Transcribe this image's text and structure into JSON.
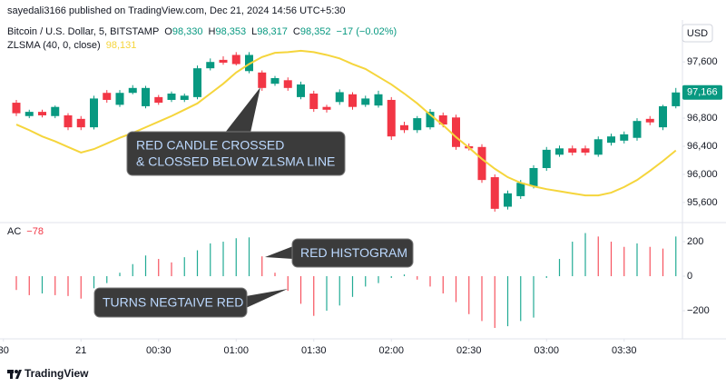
{
  "header": {
    "publisher": "sayedali3166 published on TradingView.com, Dec 21, 2024 14:56 UTC+5:30",
    "currency": "USD",
    "logo": "TradingView"
  },
  "chart_data": [
    {
      "type": "candlestick",
      "title": "Bitcoin / U.S. Dollar, 5, BITSTAMP",
      "legend": [
        {
          "key": "O",
          "value": "98,330"
        },
        {
          "key": "H",
          "value": "98,353"
        },
        {
          "key": "L",
          "value": "98,317"
        },
        {
          "key": "C",
          "value": "98,352"
        }
      ],
      "change": "−17 (−0.02%)",
      "up_color": "#089981",
      "down_color": "#f23645",
      "x": [
        "23:35",
        "23:40",
        "23:45",
        "23:50",
        "23:55",
        "00:00",
        "00:05",
        "00:10",
        "00:15",
        "00:20",
        "00:25",
        "00:30",
        "00:35",
        "00:40",
        "00:45",
        "00:50",
        "00:55",
        "01:00",
        "01:05",
        "01:10",
        "01:15",
        "01:20",
        "01:25",
        "01:30",
        "01:35",
        "01:40",
        "01:45",
        "01:50",
        "01:55",
        "02:00",
        "02:05",
        "02:10",
        "02:15",
        "02:20",
        "02:25",
        "02:30",
        "02:35",
        "02:40",
        "02:45",
        "02:50",
        "02:55",
        "03:00",
        "03:05",
        "03:10",
        "03:15",
        "03:20",
        "03:25",
        "03:30",
        "03:35",
        "03:40",
        "03:45",
        "03:50"
      ],
      "open": [
        97020,
        96830,
        96890,
        96830,
        96840,
        96790,
        96670,
        97160,
        96990,
        97160,
        96970,
        97100,
        97060,
        97060,
        97100,
        97510,
        97630,
        97700,
        97470,
        97450,
        97290,
        97340,
        97100,
        97150,
        96960,
        97030,
        97140,
        96990,
        96980,
        97060,
        96700,
        96630,
        96670,
        96840,
        96810,
        96400,
        96390,
        95960,
        95540,
        95690,
        95830,
        96090,
        96280,
        96370,
        96370,
        96280,
        96450,
        96480,
        96520,
        96790,
        96670,
        96970
      ],
      "high": [
        97060,
        96920,
        96920,
        96980,
        96870,
        96830,
        97120,
        97200,
        97200,
        97270,
        97260,
        97130,
        97180,
        97150,
        97550,
        97650,
        97680,
        97740,
        97740,
        97480,
        97400,
        97380,
        97320,
        97190,
        96990,
        97210,
        97170,
        97120,
        97190,
        97100,
        96750,
        96830,
        96930,
        96880,
        96850,
        96440,
        96430,
        96000,
        95770,
        95920,
        96130,
        96390,
        96410,
        96410,
        96410,
        96540,
        96580,
        96610,
        96800,
        96830,
        96990,
        97230
      ],
      "low": [
        96830,
        96800,
        96810,
        96800,
        96630,
        96630,
        96640,
        97020,
        96960,
        97140,
        96940,
        96990,
        97030,
        97030,
        97070,
        97480,
        97560,
        97550,
        97440,
        97190,
        97260,
        97190,
        97070,
        96890,
        96880,
        96990,
        96920,
        96960,
        96950,
        96490,
        96590,
        96590,
        96640,
        96670,
        96350,
        96340,
        95880,
        95470,
        95500,
        95650,
        95800,
        96050,
        96250,
        96270,
        96270,
        96250,
        96410,
        96440,
        96480,
        96700,
        96630,
        96940
      ],
      "close": [
        96870,
        96890,
        96840,
        96960,
        96670,
        96670,
        97080,
        97060,
        97160,
        97230,
        97230,
        97020,
        97150,
        97120,
        97510,
        97600,
        97590,
        97570,
        97700,
        97230,
        97370,
        97230,
        97280,
        96930,
        96920,
        97170,
        96960,
        97080,
        97140,
        96540,
        96630,
        96800,
        96890,
        96710,
        96390,
        96370,
        95920,
        95510,
        95730,
        95880,
        96090,
        96350,
        96370,
        96310,
        96310,
        96500,
        96540,
        96570,
        96760,
        96740,
        96970,
        97166
      ],
      "overlay": {
        "name": "ZLSMA (40, 0, close)",
        "value_label": "98,131",
        "color": "#f5d53c",
        "values": [
          96710,
          96630,
          96540,
          96470,
          96390,
          96310,
          96360,
          96440,
          96520,
          96590,
          96670,
          96750,
          96830,
          96920,
          97010,
          97150,
          97290,
          97450,
          97570,
          97670,
          97730,
          97740,
          97760,
          97740,
          97700,
          97650,
          97570,
          97500,
          97390,
          97280,
          97150,
          97010,
          96850,
          96700,
          96530,
          96380,
          96220,
          96080,
          95960,
          95880,
          95830,
          95790,
          95760,
          95730,
          95700,
          95700,
          95740,
          95820,
          95920,
          96050,
          96190,
          96340
        ]
      },
      "last_price": {
        "value": 97166,
        "label": "97,166"
      },
      "ylim": [
        95340,
        97900
      ],
      "yticks": [
        {
          "value": 97600,
          "label": "97,600"
        },
        {
          "value": 96800,
          "label": "96,800"
        },
        {
          "value": 96400,
          "label": "96,400"
        },
        {
          "value": 96000,
          "label": "96,000"
        },
        {
          "value": 95600,
          "label": "95,600"
        }
      ],
      "annotations": [
        {
          "lines": [
            "RED CANDLE CROSSED",
            "& CLOSSED BELOW ZLSMA LINE"
          ]
        }
      ]
    },
    {
      "type": "bar",
      "title": "AC",
      "value_label": "−78",
      "value_color": "#f23645",
      "x": [
        "23:35",
        "23:40",
        "23:45",
        "23:50",
        "23:55",
        "00:00",
        "00:05",
        "00:10",
        "00:15",
        "00:20",
        "00:25",
        "00:30",
        "00:35",
        "00:40",
        "00:45",
        "00:50",
        "00:55",
        "01:00",
        "01:05",
        "01:10",
        "01:15",
        "01:20",
        "01:25",
        "01:30",
        "01:35",
        "01:40",
        "01:45",
        "01:50",
        "01:55",
        "02:00",
        "02:05",
        "02:10",
        "02:15",
        "02:20",
        "02:25",
        "02:30",
        "02:35",
        "02:40",
        "02:45",
        "02:50",
        "02:55",
        "03:00",
        "03:05",
        "03:10",
        "03:15",
        "03:20",
        "03:25",
        "03:30",
        "03:35",
        "03:40",
        "03:45",
        "03:50"
      ],
      "values": [
        -80,
        -110,
        -100,
        -110,
        -115,
        -130,
        -70,
        -40,
        20,
        70,
        120,
        100,
        80,
        110,
        150,
        190,
        200,
        220,
        225,
        115,
        20,
        -85,
        -160,
        -230,
        -200,
        -170,
        -120,
        -60,
        -40,
        -10,
        10,
        -20,
        -60,
        -100,
        -150,
        -220,
        -260,
        -300,
        -290,
        -260,
        -240,
        -10,
        100,
        200,
        250,
        230,
        200,
        170,
        190,
        170,
        160,
        230
      ],
      "colors": [
        "#f7525f",
        "#f7525f",
        "#22ab94",
        "#f7525f",
        "#f7525f",
        "#f7525f",
        "#22ab94",
        "#22ab94",
        "#22ab94",
        "#22ab94",
        "#22ab94",
        "#f7525f",
        "#f7525f",
        "#22ab94",
        "#22ab94",
        "#22ab94",
        "#22ab94",
        "#22ab94",
        "#22ab94",
        "#f7525f",
        "#f7525f",
        "#f7525f",
        "#f7525f",
        "#f7525f",
        "#22ab94",
        "#22ab94",
        "#22ab94",
        "#22ab94",
        "#22ab94",
        "#22ab94",
        "#22ab94",
        "#f7525f",
        "#f7525f",
        "#f7525f",
        "#f7525f",
        "#f7525f",
        "#f7525f",
        "#f7525f",
        "#22ab94",
        "#22ab94",
        "#22ab94",
        "#22ab94",
        "#22ab94",
        "#22ab94",
        "#22ab94",
        "#f7525f",
        "#f7525f",
        "#f7525f",
        "#22ab94",
        "#f7525f",
        "#f7525f",
        "#22ab94"
      ],
      "ylim": [
        -358,
        295
      ],
      "yticks": [
        200,
        0,
        {
          "value": -200,
          "label": "−200"
        }
      ],
      "xticks": [
        {
          "value": "23:30",
          "label": "30"
        },
        {
          "value": "00:00",
          "label": "21"
        },
        "00:30",
        "01:00",
        "01:30",
        "02:00",
        "02:30",
        "03:00",
        "03:30"
      ],
      "annotations": [
        {
          "text": "RED HISTOGRAM"
        },
        {
          "text": "TURNS NEGTAIVE RED"
        }
      ]
    }
  ]
}
